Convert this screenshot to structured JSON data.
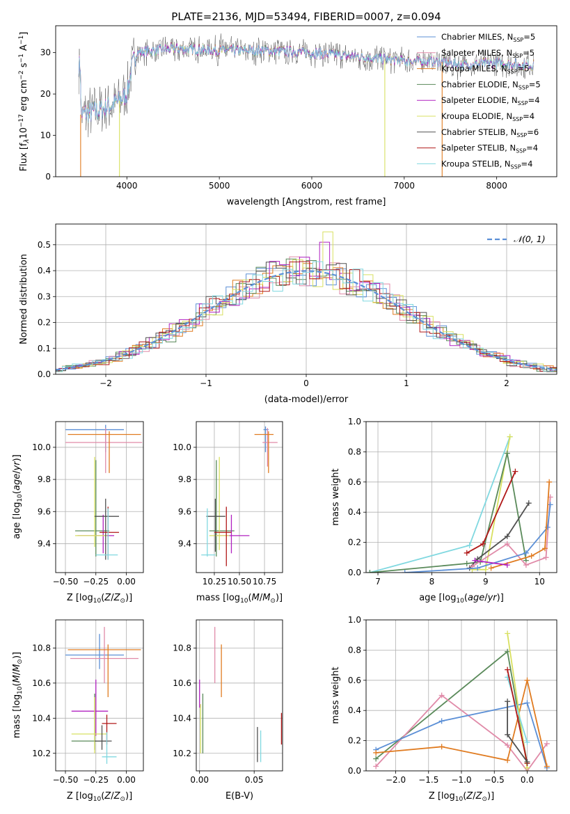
{
  "figure": {
    "title": "PLATE=2136, MJD=53494, FIBERID=0007, z=0.094"
  },
  "colors": {
    "chabrier_miles": "#5b8fd6",
    "salpeter_miles": "#e08aa8",
    "kroupa_miles": "#e07b20",
    "chabrier_elodie": "#5a8a5a",
    "salpeter_elodie": "#b020c0",
    "kroupa_elodie": "#d8e060",
    "chabrier_stelib": "#505050",
    "salpeter_stelib": "#b01818",
    "kroupa_stelib": "#80d8e0"
  },
  "chart_data": [
    {
      "id": "spectrum",
      "type": "line",
      "title": "PLATE=2136, MJD=53494, FIBERID=0007, z=0.094",
      "xlabel": "wavelength [Angstrom, rest frame]",
      "ylabel_tex": "Flux [f_λ10^-17 erg cm^-2 s^-1 A^-1]",
      "xlim": [
        3230,
        8650
      ],
      "ylim": [
        0,
        36.5
      ],
      "xticks": [
        4000,
        5000,
        6000,
        7000,
        8000
      ],
      "yticks": [
        0,
        10,
        20,
        30
      ],
      "grid": false,
      "legend": "top-right",
      "legend_entries": [
        {
          "pre": "Chabrier MILES, N",
          "n": "5",
          "key": "chabrier_miles"
        },
        {
          "pre": "Salpeter MILES, N",
          "n": "5",
          "key": "salpeter_miles"
        },
        {
          "pre": "Kroupa MILES, N",
          "n": "5",
          "key": "kroupa_miles"
        },
        {
          "pre": "Chabrier ELODIE, N",
          "n": "5",
          "key": "chabrier_elodie"
        },
        {
          "pre": "Salpeter ELODIE, N",
          "n": "4",
          "key": "salpeter_elodie"
        },
        {
          "pre": "Kroupa ELODIE, N",
          "n": "4",
          "key": "kroupa_elodie"
        },
        {
          "pre": "Chabrier STELIB, N",
          "n": "6",
          "key": "chabrier_stelib"
        },
        {
          "pre": "Salpeter STELIB, N",
          "n": "4",
          "key": "salpeter_stelib"
        },
        {
          "pre": "Kroupa STELIB, N",
          "n": "4",
          "key": "kroupa_stelib"
        }
      ],
      "continuum": [
        [
          3500,
          15
        ],
        [
          3700,
          16
        ],
        [
          3900,
          18
        ],
        [
          4000,
          20
        ],
        [
          4050,
          26
        ],
        [
          4100,
          30
        ],
        [
          4300,
          30.5
        ],
        [
          4500,
          31
        ],
        [
          5000,
          30.5
        ],
        [
          5500,
          30.5
        ],
        [
          6000,
          30
        ],
        [
          6500,
          29
        ],
        [
          7000,
          28
        ],
        [
          7400,
          27.8
        ],
        [
          7600,
          27
        ],
        [
          8000,
          27.5
        ],
        [
          8300,
          27
        ],
        [
          8400,
          27
        ]
      ],
      "dropouts": [
        [
          3500,
          "kroupa_miles"
        ],
        [
          3920,
          "kroupa_elodie"
        ],
        [
          6790,
          "kroupa_elodie"
        ],
        [
          7410,
          "kroupa_miles"
        ]
      ]
    },
    {
      "id": "residuals",
      "type": "line",
      "xlabel": "(data-model)/error",
      "ylabel": "Normed distribution",
      "xlim": [
        -2.5,
        2.5
      ],
      "ylim": [
        0,
        0.58
      ],
      "xticks": [
        -2,
        -1,
        0,
        1,
        2
      ],
      "yticks": [
        0.0,
        0.1,
        0.2,
        0.3,
        0.4,
        0.5
      ],
      "grid": true,
      "legend": "top-right",
      "legend_label": "N(0,1)"
    },
    {
      "id": "age_vs_Z",
      "type": "scatter",
      "xlabel": "Z [log10(Z/Z⊙)]",
      "ylabel": "age [log10(age/yr)]",
      "xlim": [
        -0.58,
        0.14
      ],
      "ylim": [
        9.22,
        10.16
      ],
      "xticks": [
        -0.5,
        -0.25,
        0.0
      ],
      "yticks": [
        9.4,
        9.6,
        9.8,
        10.0
      ],
      "grid": true,
      "points": [
        {
          "key": "chabrier_miles",
          "x": -0.17,
          "y": 10.11,
          "xe": [
            -0.5,
            -0.02
          ],
          "ye": [
            9.97,
            10.14
          ]
        },
        {
          "key": "salpeter_miles",
          "x": -0.17,
          "y": 10.03,
          "xe": [
            -0.5,
            0.13
          ],
          "ye": [
            9.84,
            10.12
          ]
        },
        {
          "key": "kroupa_miles",
          "x": -0.14,
          "y": 10.08,
          "xe": [
            -0.48,
            0.12
          ],
          "ye": [
            9.84,
            10.1
          ]
        },
        {
          "key": "chabrier_elodie",
          "x": -0.25,
          "y": 9.48,
          "xe": [
            -0.42,
            -0.14
          ],
          "ye": [
            9.32,
            9.92
          ]
        },
        {
          "key": "salpeter_elodie",
          "x": -0.19,
          "y": 9.45,
          "xe": [
            -0.4,
            -0.1
          ],
          "ye": [
            9.34,
            9.58
          ]
        },
        {
          "key": "kroupa_elodie",
          "x": -0.26,
          "y": 9.45,
          "xe": [
            -0.42,
            -0.16
          ],
          "ye": [
            9.38,
            9.94
          ]
        },
        {
          "key": "chabrier_stelib",
          "x": -0.17,
          "y": 9.57,
          "xe": [
            -0.26,
            -0.06
          ],
          "ye": [
            9.3,
            9.68
          ]
        },
        {
          "key": "salpeter_stelib",
          "x": -0.15,
          "y": 9.47,
          "xe": [
            -0.22,
            -0.06
          ],
          "ye": [
            9.3,
            9.63
          ]
        },
        {
          "key": "kroupa_stelib",
          "x": -0.15,
          "y": 9.33,
          "xe": [
            -0.25,
            -0.07
          ],
          "ye": [
            9.3,
            9.62
          ]
        }
      ]
    },
    {
      "id": "age_vs_mass",
      "type": "scatter",
      "xlabel": "mass [log10(M/M⊙)]",
      "xlim": [
        10.07,
        10.93
      ],
      "ylim": [
        9.22,
        10.16
      ],
      "xticks": [
        10.25,
        10.5,
        10.75
      ],
      "yticks": [
        9.4,
        9.6,
        9.8,
        10.0
      ],
      "grid": true,
      "points": [
        {
          "key": "chabrier_miles",
          "x": 10.76,
          "y": 10.11,
          "xe": [
            10.74,
            10.79
          ],
          "ye": [
            9.97,
            10.13
          ]
        },
        {
          "key": "salpeter_miles",
          "x": 10.78,
          "y": 10.03,
          "xe": [
            10.73,
            10.88
          ],
          "ye": [
            9.88,
            10.12
          ]
        },
        {
          "key": "kroupa_miles",
          "x": 10.79,
          "y": 10.08,
          "xe": [
            10.65,
            10.84
          ],
          "ye": [
            9.84,
            10.1
          ]
        },
        {
          "key": "chabrier_elodie",
          "x": 10.27,
          "y": 9.48,
          "xe": [
            10.2,
            10.45
          ],
          "ye": [
            9.32,
            9.92
          ]
        },
        {
          "key": "salpeter_elodie",
          "x": 10.42,
          "y": 9.45,
          "xe": [
            10.25,
            10.6
          ],
          "ye": [
            9.34,
            9.58
          ]
        },
        {
          "key": "kroupa_elodie",
          "x": 10.3,
          "y": 9.45,
          "xe": [
            10.2,
            10.4
          ],
          "ye": [
            9.36,
            9.94
          ]
        },
        {
          "key": "chabrier_stelib",
          "x": 10.26,
          "y": 9.57,
          "xe": [
            10.17,
            10.36
          ],
          "ye": [
            9.35,
            9.68
          ]
        },
        {
          "key": "salpeter_stelib",
          "x": 10.37,
          "y": 9.47,
          "xe": [
            10.25,
            10.42
          ],
          "ye": [
            9.26,
            9.63
          ]
        },
        {
          "key": "kroupa_stelib",
          "x": 10.18,
          "y": 9.33,
          "xe": [
            10.12,
            10.26
          ],
          "ye": [
            9.32,
            9.62
          ]
        }
      ]
    },
    {
      "id": "massweight_vs_age",
      "type": "line",
      "xlabel": "age [log10(age/yr)]",
      "ylabel": "mass weight",
      "xlim": [
        6.78,
        10.32
      ],
      "ylim": [
        0,
        1.0
      ],
      "xticks": [
        7,
        8,
        9,
        10
      ],
      "yticks": [
        0.0,
        0.2,
        0.4,
        0.6,
        0.8,
        1.0
      ],
      "grid": true,
      "series": [
        {
          "key": "kroupa_stelib",
          "points": [
            [
              6.85,
              0.0
            ],
            [
              8.7,
              0.18
            ],
            [
              9.45,
              0.9
            ]
          ]
        },
        {
          "key": "kroupa_elodie",
          "points": [
            [
              8.75,
              0.02
            ],
            [
              9.0,
              0.02
            ],
            [
              9.45,
              0.9
            ]
          ]
        },
        {
          "key": "chabrier_elodie",
          "points": [
            [
              6.85,
              0.0
            ],
            [
              8.65,
              0.06
            ],
            [
              8.9,
              0.07
            ],
            [
              9.4,
              0.79
            ],
            [
              9.75,
              0.08
            ]
          ]
        },
        {
          "key": "salpeter_stelib",
          "points": [
            [
              8.65,
              0.13
            ],
            [
              8.95,
              0.19
            ],
            [
              9.55,
              0.67
            ]
          ]
        },
        {
          "key": "chabrier_stelib",
          "points": [
            [
              8.7,
              0.03
            ],
            [
              8.85,
              0.09
            ],
            [
              9.4,
              0.24
            ],
            [
              9.8,
              0.46
            ]
          ]
        },
        {
          "key": "salpeter_miles",
          "points": [
            [
              8.75,
              0.04
            ],
            [
              9.4,
              0.19
            ],
            [
              9.75,
              0.05
            ],
            [
              10.12,
              0.1
            ],
            [
              10.2,
              0.5
            ]
          ]
        },
        {
          "key": "chabrier_miles",
          "points": [
            [
              7.5,
              0.0
            ],
            [
              8.85,
              0.03
            ],
            [
              9.75,
              0.13
            ],
            [
              10.15,
              0.3
            ],
            [
              10.2,
              0.45
            ]
          ]
        },
        {
          "key": "kroupa_miles",
          "points": [
            [
              9.1,
              0.03
            ],
            [
              9.85,
              0.11
            ],
            [
              10.1,
              0.16
            ],
            [
              10.18,
              0.6
            ]
          ]
        },
        {
          "key": "salpeter_elodie",
          "points": [
            [
              8.8,
              0.08
            ],
            [
              9.4,
              0.05
            ]
          ]
        }
      ]
    },
    {
      "id": "mass_vs_Z",
      "type": "scatter",
      "xlabel": "Z [log10(Z/Z⊙)]",
      "ylabel": "mass [log10(M/M⊙)]",
      "xlim": [
        -0.58,
        0.14
      ],
      "ylim": [
        10.1,
        10.96
      ],
      "xticks": [
        -0.5,
        -0.25,
        0.0
      ],
      "yticks": [
        10.2,
        10.4,
        10.6,
        10.8
      ],
      "grid": true,
      "points": [
        {
          "key": "chabrier_miles",
          "x": -0.22,
          "y": 10.76,
          "xe": [
            -0.5,
            -0.02
          ],
          "ye": [
            10.68,
            10.88
          ]
        },
        {
          "key": "salpeter_miles",
          "x": -0.18,
          "y": 10.74,
          "xe": [
            -0.46,
            0.1
          ],
          "ye": [
            10.6,
            10.92
          ]
        },
        {
          "key": "kroupa_miles",
          "x": -0.15,
          "y": 10.79,
          "xe": [
            -0.48,
            0.12
          ],
          "ye": [
            10.52,
            10.82
          ]
        },
        {
          "key": "chabrier_elodie",
          "x": -0.26,
          "y": 10.27,
          "xe": [
            -0.45,
            -0.15
          ],
          "ye": [
            10.22,
            10.54
          ]
        },
        {
          "key": "salpeter_elodie",
          "x": -0.25,
          "y": 10.44,
          "xe": [
            -0.45,
            -0.15
          ],
          "ye": [
            10.3,
            10.62
          ]
        },
        {
          "key": "kroupa_elodie",
          "x": -0.26,
          "y": 10.31,
          "xe": [
            -0.45,
            -0.16
          ],
          "ye": [
            10.2,
            10.52
          ]
        },
        {
          "key": "chabrier_stelib",
          "x": -0.2,
          "y": 10.27,
          "xe": [
            -0.26,
            -0.12
          ],
          "ye": [
            10.22,
            10.36
          ]
        },
        {
          "key": "salpeter_stelib",
          "x": -0.16,
          "y": 10.37,
          "xe": [
            -0.2,
            -0.08
          ],
          "ye": [
            10.25,
            10.42
          ]
        },
        {
          "key": "kroupa_stelib",
          "x": -0.16,
          "y": 10.18,
          "xe": [
            -0.2,
            -0.08
          ],
          "ye": [
            10.14,
            10.32
          ]
        }
      ]
    },
    {
      "id": "mass_vs_EBV",
      "type": "scatter",
      "xlabel": "E(B-V)",
      "xlim": [
        -0.003,
        0.076
      ],
      "ylim": [
        10.1,
        10.96
      ],
      "xticks": [
        0.0,
        0.05
      ],
      "yticks": [
        10.2,
        10.4,
        10.6,
        10.8
      ],
      "grid": true,
      "points": [
        {
          "key": "salpeter_miles",
          "x": 0.014,
          "ye": [
            10.6,
            10.92
          ]
        },
        {
          "key": "kroupa_miles",
          "x": 0.02,
          "ye": [
            10.52,
            10.82
          ]
        },
        {
          "key": "salpeter_elodie",
          "x": 0.0,
          "ye": [
            10.46,
            10.62
          ]
        },
        {
          "key": "chabrier_elodie",
          "x": 0.003,
          "ye": [
            10.2,
            10.54
          ]
        },
        {
          "key": "kroupa_elodie",
          "x": 0.001,
          "ye": [
            10.2,
            10.48
          ]
        },
        {
          "key": "chabrier_stelib",
          "x": 0.053,
          "ye": [
            10.15,
            10.35
          ]
        },
        {
          "key": "kroupa_stelib",
          "x": 0.056,
          "ye": [
            10.15,
            10.33
          ]
        },
        {
          "key": "salpeter_stelib",
          "x": 0.075,
          "ye": [
            10.25,
            10.43
          ]
        }
      ]
    },
    {
      "id": "massweight_vs_Z",
      "type": "line",
      "xlabel": "Z [log10(Z/Z⊙)]",
      "ylabel": "mass weight",
      "xlim": [
        -2.45,
        0.45
      ],
      "ylim": [
        0,
        1.0
      ],
      "xticks": [
        -2.0,
        -1.5,
        -1.0,
        -0.5,
        0.0
      ],
      "yticks": [
        0.0,
        0.2,
        0.4,
        0.6,
        0.8,
        1.0
      ],
      "grid": true,
      "series": [
        {
          "key": "chabrier_elodie",
          "points": [
            [
              -2.3,
              0.08
            ],
            [
              -0.3,
              0.79
            ],
            [
              0.0,
              0.05
            ]
          ]
        },
        {
          "key": "salpeter_miles",
          "points": [
            [
              -2.3,
              0.03
            ],
            [
              -1.3,
              0.5
            ],
            [
              -0.3,
              0.17
            ],
            [
              0.0,
              0.0
            ],
            [
              0.3,
              0.18
            ]
          ]
        },
        {
          "key": "chabrier_miles",
          "points": [
            [
              -2.3,
              0.14
            ],
            [
              -1.3,
              0.33
            ],
            [
              0.0,
              0.45
            ],
            [
              0.3,
              0.02
            ]
          ]
        },
        {
          "key": "kroupa_miles",
          "points": [
            [
              -2.3,
              0.12
            ],
            [
              -1.3,
              0.16
            ],
            [
              -0.3,
              0.07
            ],
            [
              0.0,
              0.6
            ],
            [
              0.3,
              0.03
            ]
          ]
        },
        {
          "key": "kroupa_elodie",
          "points": [
            [
              -0.3,
              0.91
            ],
            [
              0.0,
              0.02
            ]
          ]
        },
        {
          "key": "kroupa_stelib",
          "points": [
            [
              -0.3,
              0.62
            ],
            [
              0.0,
              0.19
            ]
          ]
        },
        {
          "key": "salpeter_stelib",
          "points": [
            [
              -0.3,
              0.67
            ],
            [
              0.0,
              0.05
            ]
          ]
        },
        {
          "key": "chabrier_stelib",
          "points": [
            [
              -0.3,
              0.46
            ],
            [
              -0.3,
              0.24
            ],
            [
              0.0,
              0.06
            ]
          ]
        }
      ]
    }
  ]
}
